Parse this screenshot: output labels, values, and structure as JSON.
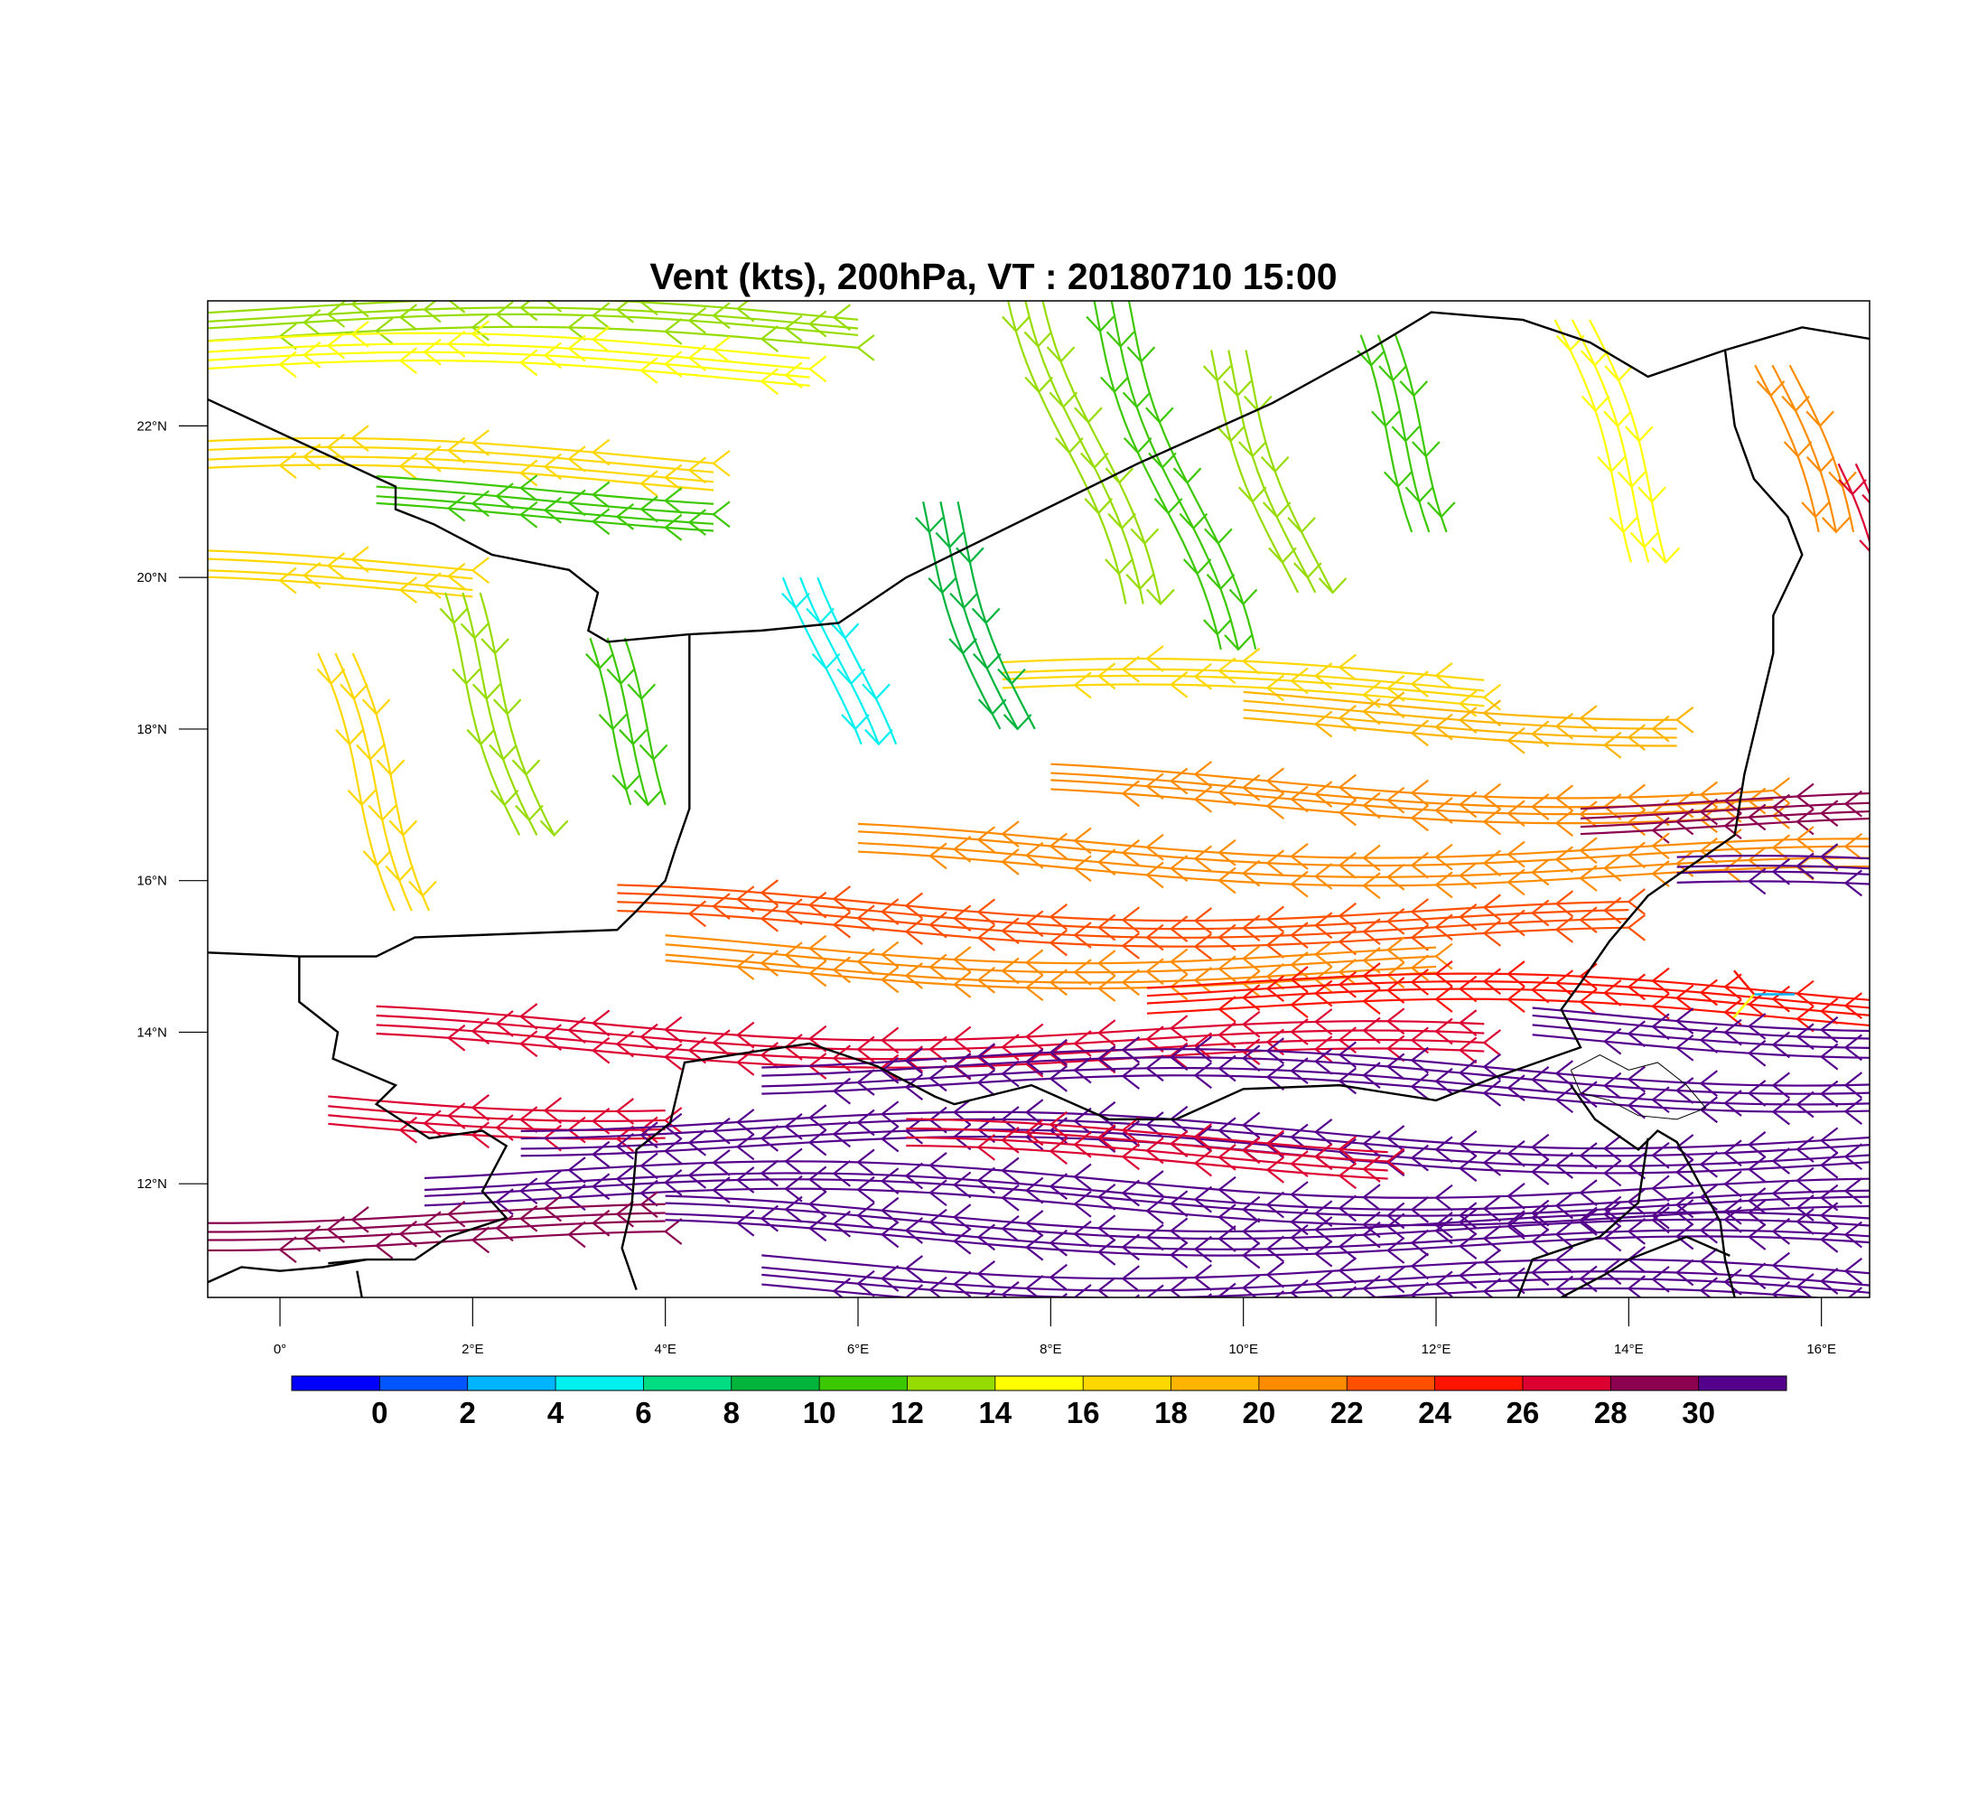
{
  "title": "Vent (kts), 200hPa, VT : 20180710  15:00",
  "map": {
    "lon_range": [
      -0.75,
      16.5
    ],
    "lat_range": [
      10.5,
      23.65
    ],
    "lon_ticks": [
      {
        "value": 0,
        "label": "0°"
      },
      {
        "value": 2,
        "label": "2°E"
      },
      {
        "value": 4,
        "label": "4°E"
      },
      {
        "value": 6,
        "label": "6°E"
      },
      {
        "value": 8,
        "label": "8°E"
      },
      {
        "value": 10,
        "label": "10°E"
      },
      {
        "value": 12,
        "label": "12°E"
      },
      {
        "value": 14,
        "label": "14°E"
      },
      {
        "value": 16,
        "label": "16°E"
      }
    ],
    "lat_ticks": [
      {
        "value": 12,
        "label": "12°N"
      },
      {
        "value": 14,
        "label": "14°N"
      },
      {
        "value": 16,
        "label": "16°N"
      },
      {
        "value": 18,
        "label": "18°N"
      },
      {
        "value": 20,
        "label": "20°N"
      },
      {
        "value": 22,
        "label": "22°N"
      }
    ],
    "borders": [
      [
        [
          -0.75,
          22.35
        ],
        [
          1.2,
          21.2
        ],
        [
          1.2,
          20.9
        ],
        [
          1.6,
          20.7
        ],
        [
          2.2,
          20.3
        ],
        [
          3.0,
          20.1
        ],
        [
          3.3,
          19.8
        ],
        [
          3.2,
          19.3
        ],
        [
          3.4,
          19.15
        ],
        [
          4.25,
          19.25
        ],
        [
          5.0,
          19.3
        ],
        [
          5.8,
          19.4
        ],
        [
          6.5,
          20.0
        ],
        [
          7.3,
          20.5
        ],
        [
          8.9,
          21.5
        ],
        [
          10.3,
          22.3
        ],
        [
          11.3,
          23.0
        ],
        [
          11.95,
          23.5
        ],
        [
          12.9,
          23.4
        ],
        [
          13.6,
          23.1
        ],
        [
          14.2,
          22.65
        ],
        [
          15.0,
          23.0
        ],
        [
          15.8,
          23.3
        ],
        [
          16.5,
          23.15
        ]
      ],
      [
        [
          -0.75,
          15.05
        ],
        [
          0.2,
          15.0
        ],
        [
          1.0,
          15.0
        ],
        [
          1.4,
          15.25
        ],
        [
          3.5,
          15.35
        ],
        [
          3.7,
          15.6
        ],
        [
          4.0,
          16.0
        ],
        [
          4.1,
          16.4
        ],
        [
          4.25,
          16.95
        ],
        [
          4.25,
          18.0
        ],
        [
          4.25,
          19.25
        ]
      ],
      [
        [
          15.0,
          23.0
        ],
        [
          15.1,
          22.0
        ],
        [
          15.3,
          21.3
        ],
        [
          15.65,
          20.8
        ],
        [
          15.8,
          20.3
        ],
        [
          15.5,
          19.5
        ],
        [
          15.5,
          19.0
        ],
        [
          15.2,
          17.4
        ],
        [
          15.1,
          16.6
        ],
        [
          14.2,
          15.8
        ],
        [
          13.8,
          15.2
        ],
        [
          13.5,
          14.65
        ],
        [
          13.3,
          14.3
        ],
        [
          13.5,
          13.8
        ],
        [
          12.6,
          13.4
        ],
        [
          12.0,
          13.1
        ],
        [
          11.0,
          13.3
        ],
        [
          10.0,
          13.25
        ],
        [
          9.3,
          12.85
        ],
        [
          8.6,
          12.85
        ],
        [
          7.8,
          13.3
        ],
        [
          7.0,
          13.05
        ],
        [
          6.8,
          13.15
        ],
        [
          6.2,
          13.55
        ],
        [
          5.5,
          13.85
        ],
        [
          4.95,
          13.75
        ],
        [
          4.2,
          13.6
        ],
        [
          4.05,
          12.8
        ],
        [
          3.7,
          12.45
        ],
        [
          3.65,
          11.7
        ],
        [
          3.55,
          11.15
        ],
        [
          3.7,
          10.6
        ]
      ],
      [
        [
          0.2,
          15.0
        ],
        [
          0.2,
          14.4
        ],
        [
          0.6,
          14.0
        ],
        [
          0.55,
          13.65
        ],
        [
          1.2,
          13.3
        ],
        [
          1.0,
          13.05
        ],
        [
          1.55,
          12.6
        ],
        [
          2.1,
          12.7
        ],
        [
          2.35,
          12.5
        ],
        [
          2.1,
          11.9
        ],
        [
          2.35,
          11.55
        ],
        [
          1.75,
          11.3
        ],
        [
          1.4,
          11.0
        ],
        [
          0.9,
          11.0
        ],
        [
          0.5,
          10.95
        ]
      ],
      [
        [
          -0.75,
          10.7
        ],
        [
          -0.4,
          10.9
        ],
        [
          0.0,
          10.85
        ],
        [
          0.45,
          10.9
        ],
        [
          0.9,
          11.0
        ]
      ],
      [
        [
          0.85,
          10.5
        ],
        [
          0.8,
          10.85
        ]
      ],
      [
        [
          13.4,
          13.3
        ],
        [
          13.65,
          12.85
        ],
        [
          14.1,
          12.45
        ],
        [
          14.3,
          12.7
        ],
        [
          14.5,
          12.55
        ],
        [
          14.95,
          11.5
        ],
        [
          15.0,
          11.0
        ],
        [
          15.1,
          10.5
        ]
      ],
      [
        [
          15.05,
          11.05
        ],
        [
          14.6,
          11.3
        ],
        [
          14.0,
          11.0
        ],
        [
          13.75,
          10.8
        ],
        [
          13.3,
          10.5
        ]
      ],
      [
        [
          14.2,
          12.6
        ],
        [
          14.1,
          11.75
        ],
        [
          13.7,
          11.3
        ],
        [
          13.0,
          11.0
        ],
        [
          12.85,
          10.5
        ]
      ]
    ],
    "lake_chad": [
      [
        13.4,
        13.5
      ],
      [
        13.7,
        13.7
      ],
      [
        14.0,
        13.5
      ],
      [
        14.3,
        13.6
      ],
      [
        14.6,
        13.3
      ],
      [
        14.8,
        13.0
      ],
      [
        14.5,
        12.85
      ],
      [
        14.1,
        12.9
      ],
      [
        13.8,
        13.1
      ],
      [
        13.5,
        13.2
      ],
      [
        13.4,
        13.5
      ]
    ]
  },
  "wind_field": {
    "units": "kts",
    "bands": [
      {
        "lat": 23.4,
        "lon_start": -0.75,
        "lon_end": 6.0,
        "speed": 12,
        "spacing": 0.12
      },
      {
        "lat": 22.9,
        "lon_start": -0.75,
        "lon_end": 5.5,
        "speed": 14,
        "spacing": 0.15
      },
      {
        "lat": 21.5,
        "lon_start": -0.75,
        "lon_end": 4.5,
        "speed": 16,
        "spacing": 0.15
      },
      {
        "lat": 21.0,
        "lon_start": 1.0,
        "lon_end": 4.5,
        "speed": 11,
        "spacing": 0.1
      },
      {
        "lat": 20.0,
        "lon_start": -0.75,
        "lon_end": 2.0,
        "speed": 16,
        "spacing": 0.15
      },
      {
        "lat": 18.6,
        "lon_start": 7.5,
        "lon_end": 12.5,
        "speed": 16,
        "spacing": 0.12
      },
      {
        "lat": 18.2,
        "lon_start": 10.0,
        "lon_end": 14.5,
        "speed": 19,
        "spacing": 0.12
      },
      {
        "lat": 17.2,
        "lon_start": 8.0,
        "lon_end": 15.5,
        "speed": 20,
        "spacing": 0.1
      },
      {
        "lat": 16.9,
        "lon_start": 13.5,
        "lon_end": 16.5,
        "speed": 28,
        "spacing": 0.1
      },
      {
        "lat": 16.4,
        "lon_start": 6.0,
        "lon_end": 16.5,
        "speed": 21,
        "spacing": 0.1
      },
      {
        "lat": 16.0,
        "lon_start": 14.5,
        "lon_end": 16.5,
        "speed": 31,
        "spacing": 0.12
      },
      {
        "lat": 15.6,
        "lon_start": 3.5,
        "lon_end": 14.0,
        "speed": 22,
        "spacing": 0.1
      },
      {
        "lat": 15.0,
        "lon_start": 4.0,
        "lon_end": 12.0,
        "speed": 21,
        "spacing": 0.1
      },
      {
        "lat": 14.5,
        "lon_start": 9.0,
        "lon_end": 16.5,
        "speed": 25,
        "spacing": 0.1
      },
      {
        "lat": 14.0,
        "lon_start": 1.0,
        "lon_end": 12.5,
        "speed": 26,
        "spacing": 0.1
      },
      {
        "lat": 14.1,
        "lon_start": 13.0,
        "lon_end": 16.5,
        "speed": 31,
        "spacing": 0.1
      },
      {
        "lat": 13.5,
        "lon_start": 5.0,
        "lon_end": 16.5,
        "speed": 30,
        "spacing": 0.1
      },
      {
        "lat": 13.0,
        "lon_start": 0.5,
        "lon_end": 4.0,
        "speed": 26,
        "spacing": 0.1
      },
      {
        "lat": 12.7,
        "lon_start": 2.5,
        "lon_end": 16.5,
        "speed": 31,
        "spacing": 0.08
      },
      {
        "lat": 12.5,
        "lon_start": 6.5,
        "lon_end": 11.5,
        "speed": 26,
        "spacing": 0.1
      },
      {
        "lat": 12.0,
        "lon_start": 1.5,
        "lon_end": 16.5,
        "speed": 30,
        "spacing": 0.1
      },
      {
        "lat": 11.5,
        "lon_start": -0.75,
        "lon_end": 4.0,
        "speed": 28,
        "spacing": 0.12
      },
      {
        "lat": 11.5,
        "lon_start": 4.0,
        "lon_end": 16.5,
        "speed": 30,
        "spacing": 0.1
      },
      {
        "lat": 10.8,
        "lon_start": 5.0,
        "lon_end": 16.5,
        "speed": 31,
        "spacing": 0.08
      }
    ],
    "meridional_streams": [
      {
        "lon": 7.8,
        "lat_start": 19.5,
        "lat_end": 23.65,
        "speed": 12
      },
      {
        "lon": 8.6,
        "lat_start": 19.0,
        "lat_end": 23.65,
        "speed": 11
      },
      {
        "lon": 9.8,
        "lat_start": 19.8,
        "lat_end": 23.0,
        "speed": 13
      },
      {
        "lon": 11.3,
        "lat_start": 20.5,
        "lat_end": 23.2,
        "speed": 11
      },
      {
        "lon": 13.4,
        "lat_start": 20.2,
        "lat_end": 23.4,
        "speed": 15
      },
      {
        "lon": 15.5,
        "lat_start": 20.5,
        "lat_end": 22.8,
        "speed": 21
      },
      {
        "lon": 16.3,
        "lat_start": 19.5,
        "lat_end": 21.5,
        "speed": 26
      },
      {
        "lon": 1.8,
        "lat_start": 16.5,
        "lat_end": 19.8,
        "speed": 12
      },
      {
        "lon": 3.3,
        "lat_start": 17.0,
        "lat_end": 19.2,
        "speed": 11
      },
      {
        "lon": 0.5,
        "lat_start": 15.5,
        "lat_end": 19.0,
        "speed": 16
      },
      {
        "lon": 5.5,
        "lat_start": 17.8,
        "lat_end": 20.0,
        "speed": 5
      },
      {
        "lon": 6.8,
        "lat_start": 18.0,
        "lat_end": 21.0,
        "speed": 8
      }
    ],
    "gyre": {
      "lon": 15.3,
      "lat": 14.5,
      "speeds": [
        2,
        14,
        24
      ]
    }
  },
  "colorbar": {
    "colors": [
      "#0000ff",
      "#0055ff",
      "#00b4ff",
      "#00f0f0",
      "#00dc82",
      "#00b43c",
      "#3cc800",
      "#96dc00",
      "#ffff00",
      "#ffd700",
      "#ffb400",
      "#ff8c00",
      "#ff5000",
      "#ff1400",
      "#dc0032",
      "#8c0050",
      "#55008c"
    ],
    "labels": [
      "0",
      "2",
      "4",
      "6",
      "8",
      "10",
      "12",
      "14",
      "16",
      "18",
      "20",
      "22",
      "24",
      "26",
      "28",
      "30"
    ]
  }
}
